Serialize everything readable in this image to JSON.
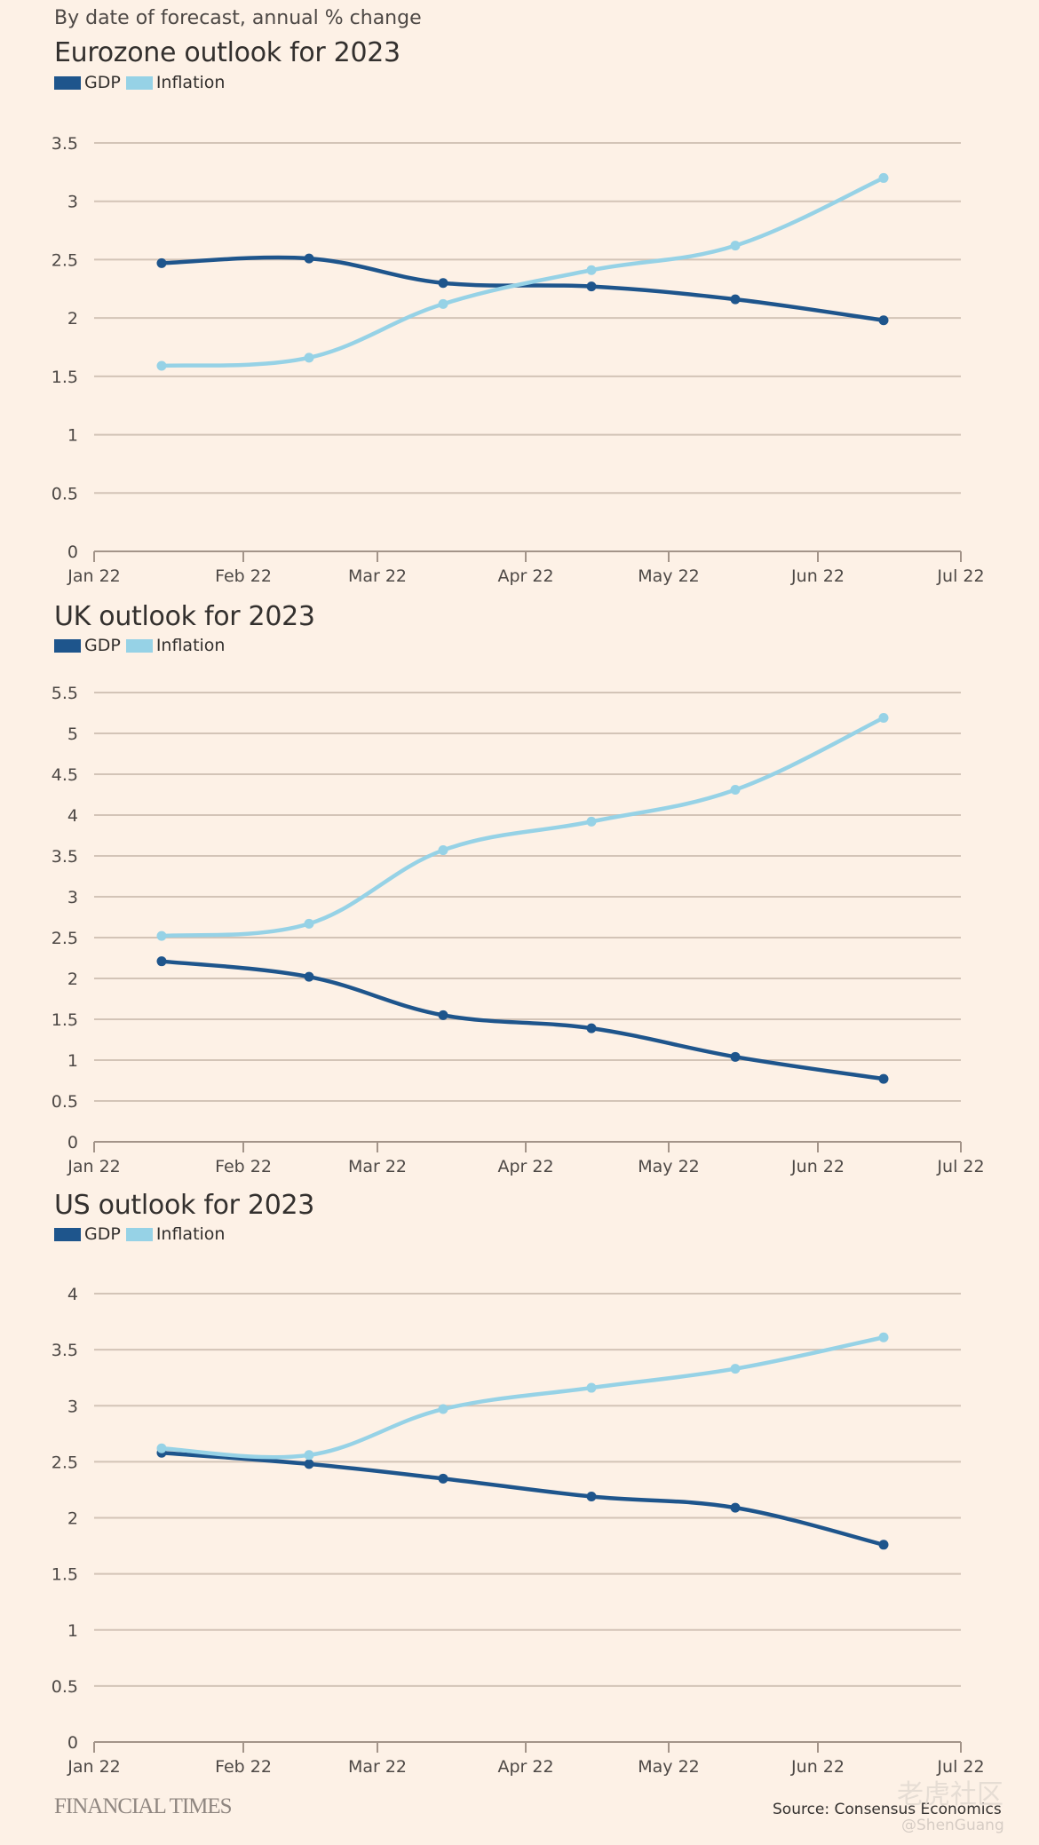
{
  "subtitle": "By date of forecast, annual % change",
  "colors": {
    "gdp": "#1e558c",
    "inflation": "#96d2e6",
    "grid": "#d3c4b7",
    "axis": "#a39489",
    "background": "#fdf1e6"
  },
  "legend": {
    "gdp": "GDP",
    "inflation": "Inflation"
  },
  "footer": {
    "brand": "FINANCIAL TIMES",
    "source": "Source: Consensus Economics"
  },
  "watermark": {
    "text": "老虎社区",
    "handle": "@ShenGuang"
  },
  "chart_data": [
    {
      "type": "line",
      "title": "Eurozone outlook for 2023",
      "xlabel": "",
      "ylabel": "",
      "x_ticks": [
        "Jan 22",
        "Feb 22",
        "Mar 22",
        "Apr 22",
        "May 22",
        "Jun 22",
        "Jul 22"
      ],
      "x": [
        "Jan 22 mid",
        "Feb 22 mid",
        "Mar 22 mid",
        "Apr 22 mid",
        "May 22 mid",
        "Jun 22 mid"
      ],
      "y_ticks": [
        "0",
        "0.5",
        "1",
        "1.5",
        "2",
        "2.5",
        "3",
        "3.5"
      ],
      "ylim": [
        0,
        3.5
      ],
      "grid": true,
      "legend_position": "top-left",
      "series": [
        {
          "name": "GDP",
          "values": [
            2.47,
            2.51,
            2.3,
            2.27,
            2.16,
            1.98
          ]
        },
        {
          "name": "Inflation",
          "values": [
            1.59,
            1.66,
            2.12,
            2.41,
            2.62,
            3.2
          ]
        }
      ]
    },
    {
      "type": "line",
      "title": "UK outlook for 2023",
      "xlabel": "",
      "ylabel": "",
      "x_ticks": [
        "Jan 22",
        "Feb 22",
        "Mar 22",
        "Apr 22",
        "May 22",
        "Jun 22",
        "Jul 22"
      ],
      "x": [
        "Jan 22 mid",
        "Feb 22 mid",
        "Mar 22 mid",
        "Apr 22 mid",
        "May 22 mid",
        "Jun 22 mid"
      ],
      "y_ticks": [
        "0",
        "0.5",
        "1",
        "1.5",
        "2",
        "2.5",
        "3",
        "3.5",
        "4",
        "4.5",
        "5",
        "5.5"
      ],
      "ylim": [
        0,
        5.5
      ],
      "grid": true,
      "legend_position": "top-left",
      "series": [
        {
          "name": "GDP",
          "values": [
            2.21,
            2.02,
            1.55,
            1.39,
            1.04,
            0.77
          ]
        },
        {
          "name": "Inflation",
          "values": [
            2.52,
            2.67,
            3.57,
            3.92,
            4.31,
            5.19
          ]
        }
      ]
    },
    {
      "type": "line",
      "title": "US outlook for 2023",
      "xlabel": "",
      "ylabel": "",
      "x_ticks": [
        "Jan 22",
        "Feb 22",
        "Mar 22",
        "Apr 22",
        "May 22",
        "Jun 22",
        "Jul 22"
      ],
      "x": [
        "Jan 22 mid",
        "Feb 22 mid",
        "Mar 22 mid",
        "Apr 22 mid",
        "May 22 mid",
        "Jun 22 mid"
      ],
      "y_ticks": [
        "0",
        "0.5",
        "1",
        "1.5",
        "2",
        "2.5",
        "3",
        "3.5",
        "4"
      ],
      "ylim": [
        0,
        4
      ],
      "grid": true,
      "legend_position": "top-left",
      "series": [
        {
          "name": "GDP",
          "values": [
            2.58,
            2.48,
            2.35,
            2.19,
            2.09,
            1.76
          ]
        },
        {
          "name": "Inflation",
          "values": [
            2.62,
            2.56,
            2.97,
            3.16,
            3.33,
            3.61
          ]
        }
      ]
    }
  ]
}
